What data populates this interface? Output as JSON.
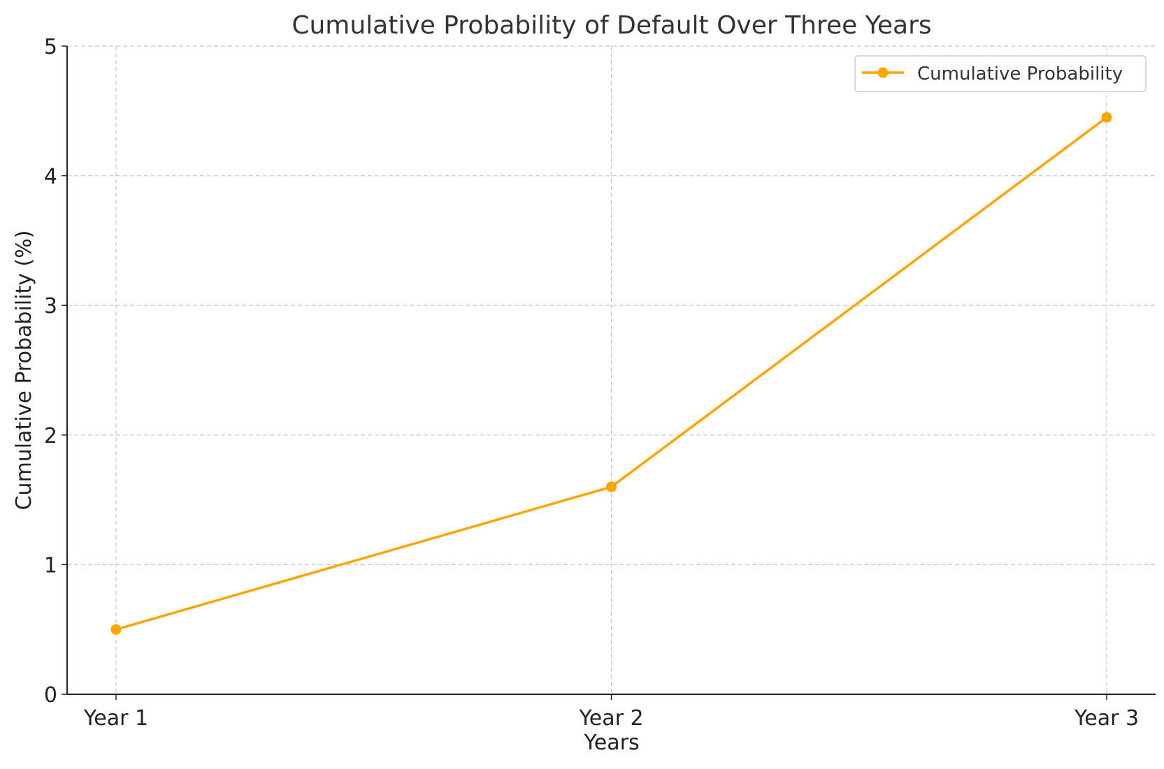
{
  "chart_data": {
    "type": "line",
    "title": "Cumulative Probability of Default Over Three Years",
    "xlabel": "Years",
    "ylabel": "Cumulative Probability (%)",
    "categories": [
      "Year 1",
      "Year 2",
      "Year 3"
    ],
    "series": [
      {
        "name": "Cumulative Probability",
        "values": [
          0.5,
          1.6,
          4.45
        ],
        "color": "#FFA500",
        "marker": "circle"
      }
    ],
    "ylim": [
      0,
      5
    ],
    "yticks": [
      0,
      1,
      2,
      3,
      4,
      5
    ],
    "grid": true,
    "grid_style": "dashed",
    "legend_position": "top-right"
  }
}
